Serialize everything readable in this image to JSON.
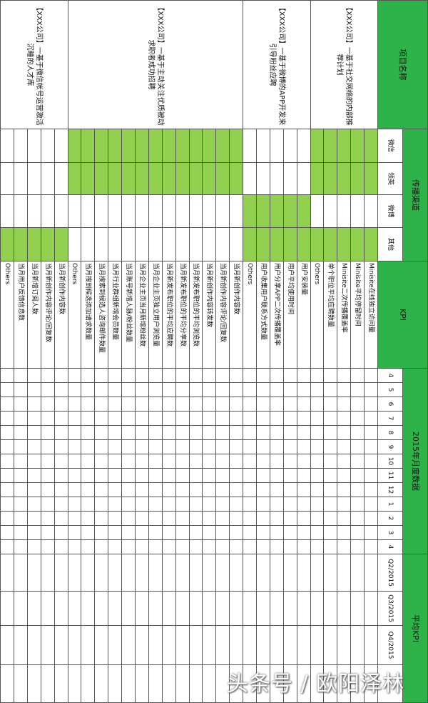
{
  "header": {
    "project": "项目名称",
    "channel": "传播渠道",
    "kpi": "KPI",
    "monthly": "2015年月度数据",
    "average": "平均KPI"
  },
  "channels": [
    "微信",
    "领英",
    "微博",
    "其他"
  ],
  "months": [
    "4",
    "5",
    "6",
    "7",
    "8",
    "9",
    "10",
    "11",
    "12",
    "1",
    "2",
    "3",
    "4"
  ],
  "quarters": [
    "Q2/2015",
    "Q3/2015",
    "Q4/2015"
  ],
  "projects": [
    {
      "name": "【XXX公司】一基于社交网络的内部推荐计划",
      "channels_on": [
        true,
        true,
        false,
        true
      ],
      "kpis": [
        "Minisite在线独立访问量",
        "Minisite平均停留时间",
        "Minisite二次传播覆盖率",
        "单个职位平均应聘数量",
        "Others"
      ]
    },
    {
      "name": "【XXX公司】一基于微博的APP开发来引导粉丝应聘",
      "channels_on": [
        false,
        false,
        true,
        true
      ],
      "kpis": [
        "用户安装量",
        "用户平均使用时间",
        "用户分享APP二次传播覆盖率",
        "用户收集用户联系方式数量",
        "Others"
      ]
    },
    {
      "name": "【XXX公司】一基于主动关注优质被动求职者成功招聘",
      "channels_on": [
        true,
        true,
        false,
        false
      ],
      "kpis": [
        "当月新创作内容数",
        "当月新创作内容评论/回复数",
        "当月新创作内容转发数",
        "当月新发布职位的平均浏览数",
        "当月新发布职位的平均分享数",
        "当月新发布职位的平均应聘数",
        "当月企业主页独立用户浏览量",
        "当月企业主页当月新增粉丝数",
        "当月账号新增人脉/粉丝数量",
        "当月行业群组新增会员数量",
        "当月搜索到候选人咨询邮件数量",
        "当月搜到候选添加请求数量",
        "Others"
      ]
    },
    {
      "name": "【XXX公司】一基于微信帐号运营激活沉睡的人才库",
      "channels_on": [
        false,
        false,
        false,
        true
      ],
      "kpis": [
        "当月新创作内容数",
        "当月新创作内容评论/回复数",
        "当月新增订阅人数",
        "当月用户反馈信息数",
        "Others"
      ]
    }
  ],
  "watermark": "头条号 / 欧阳泽林"
}
